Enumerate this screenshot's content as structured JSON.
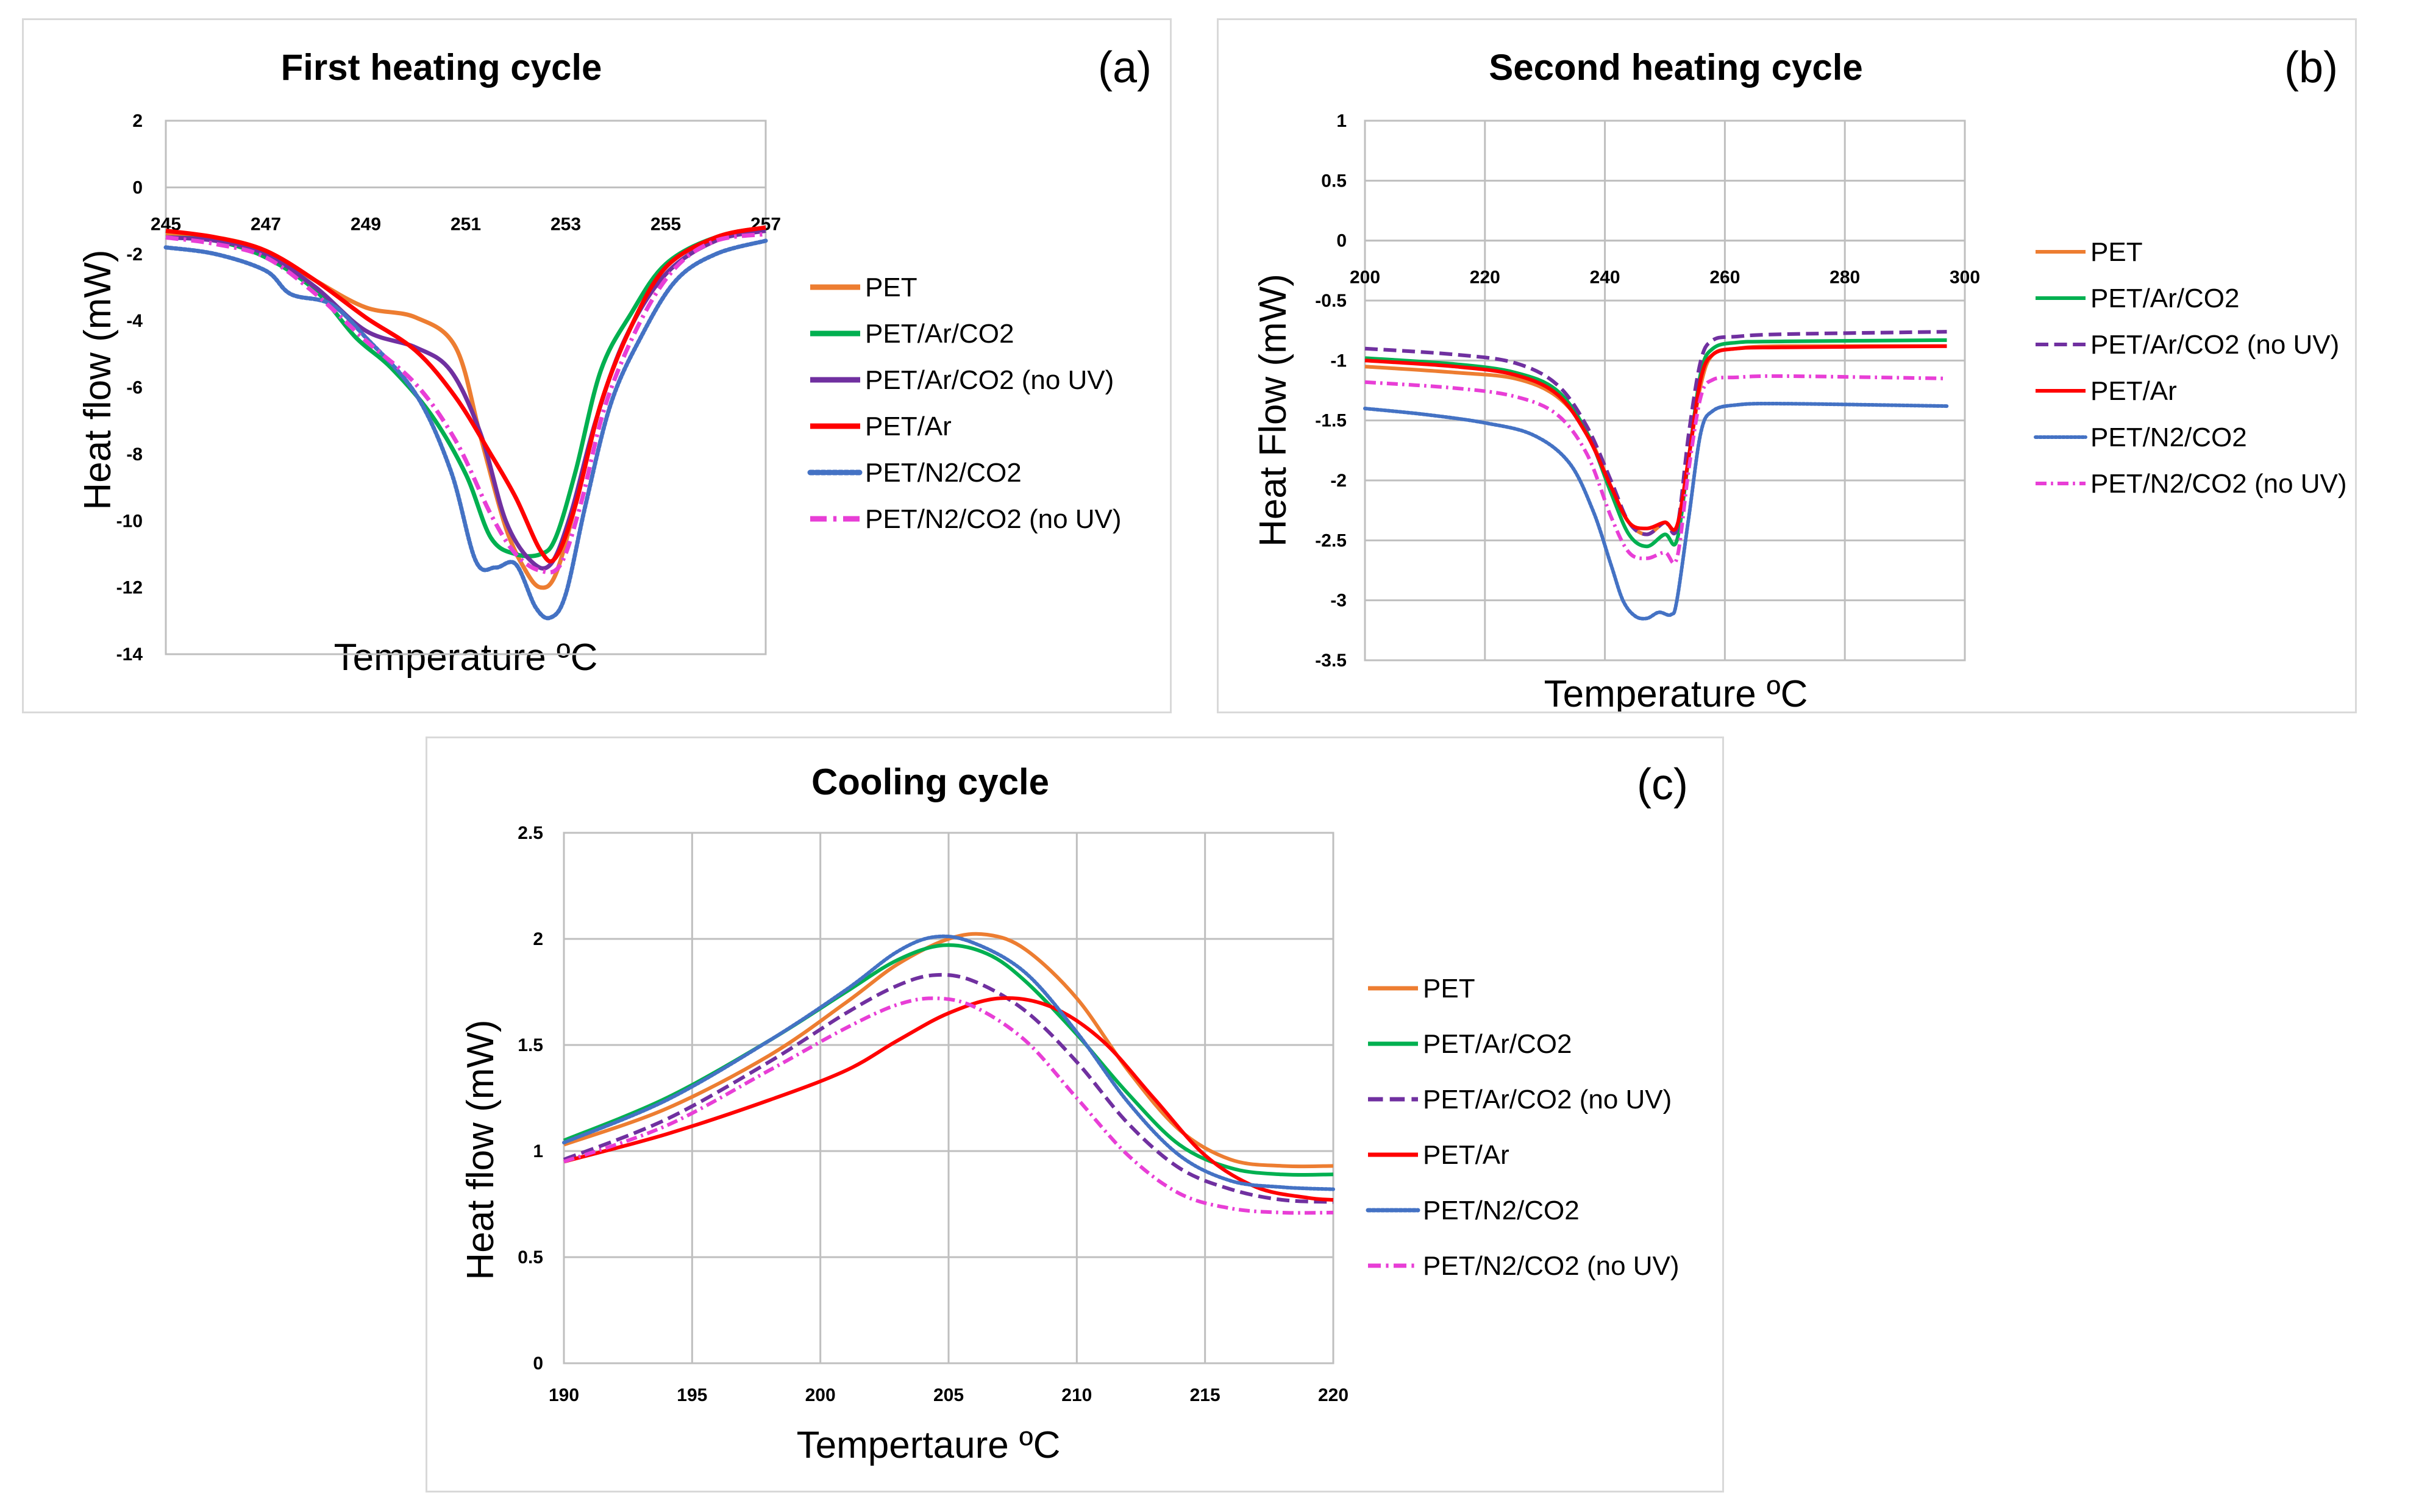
{
  "chart_data": [
    {
      "type": "line",
      "panel_label": "(a)",
      "title": "First heating cycle",
      "xlabel": "Temperature ºC",
      "ylabel": "Heat flow (mW)",
      "xlim": [
        245,
        257
      ],
      "ylim": [
        -14,
        2
      ],
      "xticks": [
        "245",
        "247",
        "249",
        "251",
        "253",
        "255",
        "257"
      ],
      "yticks": [
        "2",
        "0",
        "-2",
        "-4",
        "-6",
        "-8",
        "-10",
        "-12",
        "-14"
      ],
      "grid": false,
      "legend_position": "right",
      "series": [
        {
          "name": "PET",
          "color": "#ED7D31",
          "dash": "solid",
          "x": [
            245,
            246,
            247,
            248,
            249,
            250,
            250.8,
            251.3,
            251.8,
            252.2,
            252.5,
            252.8,
            253.2,
            253.7,
            254.3,
            255,
            256,
            257
          ],
          "y": [
            -1.4,
            -1.5,
            -1.9,
            -2.8,
            -3.6,
            -3.9,
            -4.8,
            -7.5,
            -10.2,
            -11.5,
            -12.0,
            -11.6,
            -9.5,
            -6.5,
            -4.2,
            -2.4,
            -1.5,
            -1.2
          ]
        },
        {
          "name": "PET/Ar/CO2",
          "color": "#00B050",
          "dash": "solid",
          "x": [
            245,
            246,
            247,
            248,
            248.8,
            249.5,
            250.3,
            251.0,
            251.5,
            252.0,
            252.5,
            252.8,
            253.2,
            253.7,
            254.3,
            255,
            256,
            257
          ],
          "y": [
            -1.5,
            -1.6,
            -2.1,
            -3.1,
            -4.5,
            -5.4,
            -6.8,
            -8.6,
            -10.5,
            -11.0,
            -11.0,
            -10.5,
            -8.5,
            -5.5,
            -3.8,
            -2.3,
            -1.5,
            -1.3
          ]
        },
        {
          "name": "PET/Ar/CO2 (no UV)",
          "color": "#7030A0",
          "dash": "solid",
          "x": [
            245,
            246,
            247,
            248,
            249,
            250,
            250.7,
            251.3,
            251.8,
            252.3,
            252.7,
            253.1,
            253.6,
            254.2,
            255,
            256,
            257
          ],
          "y": [
            -1.5,
            -1.6,
            -2.0,
            -3.0,
            -4.3,
            -4.8,
            -5.5,
            -7.4,
            -10.0,
            -11.2,
            -11.3,
            -9.8,
            -7.0,
            -4.5,
            -2.6,
            -1.6,
            -1.3
          ]
        },
        {
          "name": "PET/Ar",
          "color": "#FF0000",
          "dash": "solid",
          "x": [
            245,
            246,
            247,
            248,
            249,
            250,
            250.8,
            251.5,
            252.0,
            252.5,
            252.8,
            253.2,
            253.7,
            254.3,
            255,
            256,
            257
          ],
          "y": [
            -1.3,
            -1.5,
            -1.9,
            -2.8,
            -3.9,
            -4.9,
            -6.3,
            -8.0,
            -9.3,
            -10.9,
            -11.1,
            -9.5,
            -6.5,
            -4.2,
            -2.4,
            -1.5,
            -1.2
          ]
        },
        {
          "name": "PET/N2/CO2",
          "color": "#4472C4",
          "dash": "dotted",
          "x": [
            245,
            246,
            247,
            247.5,
            248.3,
            249,
            250,
            250.7,
            251.2,
            251.6,
            252.0,
            252.4,
            252.7,
            253.0,
            253.4,
            253.9,
            254.5,
            255.2,
            256,
            257
          ],
          "y": [
            -1.8,
            -2.0,
            -2.5,
            -3.2,
            -3.5,
            -4.5,
            -6.2,
            -8.5,
            -11.2,
            -11.4,
            -11.3,
            -12.6,
            -12.9,
            -12.2,
            -9.5,
            -6.5,
            -4.5,
            -2.8,
            -2.0,
            -1.6
          ]
        },
        {
          "name": "PET/N2/CO2 (no UV)",
          "color": "#E83ED6",
          "dash": "dashdot",
          "x": [
            245,
            246,
            247,
            248,
            249,
            250,
            250.8,
            251.5,
            252.0,
            252.5,
            252.9,
            253.3,
            253.8,
            254.5,
            255.2,
            256,
            257
          ],
          "y": [
            -1.5,
            -1.7,
            -2.1,
            -3.2,
            -4.6,
            -5.9,
            -7.6,
            -9.8,
            -11.0,
            -11.5,
            -11.3,
            -9.5,
            -6.5,
            -4.0,
            -2.4,
            -1.6,
            -1.4
          ]
        }
      ]
    },
    {
      "type": "line",
      "panel_label": "(b)",
      "title": "Second heating cycle",
      "xlabel": "Temperature ºC",
      "ylabel": "Heat Flow (mW)",
      "xlim": [
        200,
        300
      ],
      "ylim": [
        -3.5,
        1
      ],
      "xticks": [
        "200",
        "220",
        "240",
        "260",
        "280",
        "300"
      ],
      "yticks": [
        "1",
        "0.5",
        "0",
        "-0.5",
        "-1",
        "-1.5",
        "-2",
        "-2.5",
        "-3",
        "-3.5"
      ],
      "grid": true,
      "legend_position": "right",
      "series": [
        {
          "name": "PET",
          "color": "#ED7D31",
          "dash": "solid",
          "x": [
            200,
            215,
            225,
            232,
            237,
            241,
            244,
            247,
            250,
            252,
            254,
            256,
            258,
            262,
            270,
            297
          ],
          "y": [
            -1.05,
            -1.1,
            -1.15,
            -1.3,
            -1.6,
            -2.05,
            -2.35,
            -2.45,
            -2.35,
            -2.4,
            -1.8,
            -1.2,
            -0.95,
            -0.9,
            -0.88,
            -0.88
          ]
        },
        {
          "name": "PET/Ar/CO2",
          "color": "#00B050",
          "dash": "solid",
          "x": [
            200,
            215,
            225,
            232,
            237,
            241,
            244,
            247,
            250,
            252,
            254,
            256,
            258,
            262,
            270,
            297
          ],
          "y": [
            -0.98,
            -1.03,
            -1.1,
            -1.25,
            -1.6,
            -2.1,
            -2.45,
            -2.55,
            -2.45,
            -2.5,
            -1.8,
            -1.1,
            -0.9,
            -0.85,
            -0.84,
            -0.83
          ]
        },
        {
          "name": "PET/Ar/CO2 (no UV)",
          "color": "#7030A0",
          "dash": "dashed",
          "x": [
            200,
            215,
            225,
            232,
            237,
            241,
            244,
            247,
            250,
            252,
            254,
            256,
            258,
            262,
            270,
            297
          ],
          "y": [
            -0.9,
            -0.95,
            -1.02,
            -1.2,
            -1.55,
            -2.0,
            -2.35,
            -2.45,
            -2.35,
            -2.4,
            -1.6,
            -1.0,
            -0.83,
            -0.8,
            -0.78,
            -0.76
          ]
        },
        {
          "name": "PET/Ar",
          "color": "#FF0000",
          "dash": "solid",
          "x": [
            200,
            215,
            225,
            232,
            237,
            241,
            244,
            247,
            250,
            252,
            254,
            256,
            258,
            262,
            270,
            297
          ],
          "y": [
            -1.0,
            -1.05,
            -1.12,
            -1.28,
            -1.62,
            -2.05,
            -2.35,
            -2.4,
            -2.35,
            -2.38,
            -1.8,
            -1.15,
            -0.95,
            -0.9,
            -0.89,
            -0.88
          ]
        },
        {
          "name": "PET/N2/CO2",
          "color": "#4472C4",
          "dash": "dotted",
          "x": [
            200,
            210,
            220,
            228,
            234,
            238,
            241,
            243,
            245,
            247,
            249,
            251,
            252,
            254,
            256,
            258,
            262,
            270,
            297
          ],
          "y": [
            -1.4,
            -1.45,
            -1.52,
            -1.62,
            -1.85,
            -2.25,
            -2.7,
            -3.0,
            -3.13,
            -3.15,
            -3.1,
            -3.12,
            -3.0,
            -2.3,
            -1.6,
            -1.42,
            -1.37,
            -1.36,
            -1.38
          ]
        },
        {
          "name": "PET/N2/CO2 (no UV)",
          "color": "#E83ED6",
          "dash": "dashdot",
          "x": [
            200,
            215,
            225,
            232,
            237,
            241,
            244,
            247,
            250,
            252,
            254,
            256,
            258,
            262,
            270,
            297
          ],
          "y": [
            -1.18,
            -1.23,
            -1.3,
            -1.45,
            -1.78,
            -2.3,
            -2.6,
            -2.65,
            -2.6,
            -2.65,
            -1.9,
            -1.3,
            -1.16,
            -1.14,
            -1.13,
            -1.15
          ]
        }
      ]
    },
    {
      "type": "line",
      "panel_label": "(c)",
      "title": "Cooling cycle",
      "xlabel": "Tempertaure ºC",
      "ylabel": "Heat flow (mW)",
      "xlim": [
        190,
        220
      ],
      "ylim": [
        0,
        2.5
      ],
      "xticks": [
        "190",
        "195",
        "200",
        "205",
        "210",
        "215",
        "220"
      ],
      "yticks": [
        "2.5",
        "2",
        "1.5",
        "1",
        "0.5",
        "0"
      ],
      "grid": true,
      "legend_position": "right",
      "series": [
        {
          "name": "PET",
          "color": "#ED7D31",
          "dash": "solid",
          "x": [
            190,
            194,
            198,
            201,
            203,
            205,
            206.5,
            208,
            210,
            212,
            214,
            216,
            218,
            220
          ],
          "y": [
            1.03,
            1.2,
            1.45,
            1.7,
            1.88,
            2.0,
            2.02,
            1.95,
            1.72,
            1.38,
            1.1,
            0.96,
            0.93,
            0.93
          ]
        },
        {
          "name": "PET/Ar/CO2",
          "color": "#00B050",
          "dash": "solid",
          "x": [
            190,
            194,
            198,
            201,
            203,
            204.8,
            206.5,
            208,
            210,
            212,
            214,
            216,
            218,
            220
          ],
          "y": [
            1.05,
            1.25,
            1.52,
            1.75,
            1.9,
            1.97,
            1.93,
            1.8,
            1.55,
            1.27,
            1.03,
            0.92,
            0.89,
            0.89
          ]
        },
        {
          "name": "PET/Ar/CO2 (no UV)",
          "color": "#7030A0",
          "dash": "dashed",
          "x": [
            190,
            194,
            198,
            201,
            203,
            204.5,
            206,
            208,
            210,
            212,
            214,
            216,
            218,
            220
          ],
          "y": [
            0.96,
            1.15,
            1.42,
            1.65,
            1.78,
            1.83,
            1.8,
            1.66,
            1.42,
            1.13,
            0.92,
            0.82,
            0.77,
            0.76
          ]
        },
        {
          "name": "PET/Ar",
          "color": "#FF0000",
          "dash": "solid",
          "x": [
            190,
            194,
            198,
            201,
            203,
            205,
            207,
            209,
            211,
            213,
            215,
            217,
            219,
            220
          ],
          "y": [
            0.95,
            1.08,
            1.24,
            1.38,
            1.52,
            1.65,
            1.72,
            1.68,
            1.52,
            1.25,
            0.98,
            0.83,
            0.78,
            0.77
          ]
        },
        {
          "name": "PET/N2/CO2",
          "color": "#4472C4",
          "dash": "dotted",
          "x": [
            190,
            194,
            198,
            201,
            203,
            204.5,
            206,
            208,
            210,
            212,
            214,
            216,
            218,
            220
          ],
          "y": [
            1.04,
            1.24,
            1.52,
            1.76,
            1.94,
            2.01,
            1.98,
            1.84,
            1.56,
            1.23,
            0.98,
            0.86,
            0.83,
            0.82
          ]
        },
        {
          "name": "PET/N2/CO2 (no UV)",
          "color": "#E83ED6",
          "dash": "dashdot",
          "x": [
            190,
            194,
            198,
            201,
            203,
            204.5,
            206,
            208,
            210,
            212,
            214,
            216,
            218,
            220
          ],
          "y": [
            0.95,
            1.12,
            1.38,
            1.58,
            1.69,
            1.72,
            1.68,
            1.52,
            1.25,
            0.98,
            0.8,
            0.73,
            0.71,
            0.71
          ]
        }
      ]
    }
  ]
}
